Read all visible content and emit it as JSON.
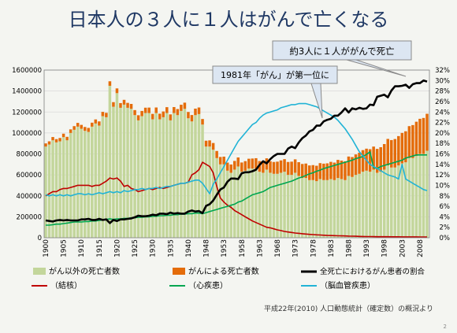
{
  "slide_title": "日本人の３人に１人はがんで亡くなる",
  "source_note": "平成22年(2010) 人口動態統計（確定数）の概況より",
  "page_number": "2",
  "chart_data": {
    "type": "bar",
    "left_axis": {
      "min": 0,
      "max": 1600000,
      "ticks": [
        "0",
        "200000",
        "400000",
        "600000",
        "800000",
        "1000000",
        "1200000",
        "1400000",
        "1600000"
      ]
    },
    "right_axis": {
      "min": 0,
      "max": 32,
      "ticks": [
        "0%",
        "2%",
        "4%",
        "6%",
        "8%",
        "10%",
        "12%",
        "14%",
        "16%",
        "18%",
        "20%",
        "22%",
        "24%",
        "26%",
        "28%",
        "30%",
        "32%"
      ]
    },
    "x_tick_labels": [
      "1900",
      "1905",
      "1910",
      "1915",
      "1920",
      "1925",
      "1930",
      "1935",
      "1940",
      "1948",
      "1953",
      "1958",
      "1963",
      "1968",
      "1973",
      "1978",
      "1983",
      "1988",
      "1993",
      "1998",
      "2003",
      "2008"
    ],
    "colors": {
      "non_cancer": "#c3d69b",
      "cancer": "#e46c0a",
      "share": "#000000",
      "tb": "#c00000",
      "heart": "#00a651",
      "cerebro": "#21b3d6",
      "grid": "#d9d9d9",
      "title": "#1f3864"
    },
    "callouts": [
      "約3人に１人ががんで死亡",
      "1981年「がん」が第一位に"
    ],
    "legend": [
      {
        "label": "がん以外の死亡者数",
        "kind": "box",
        "color": "#c3d69b"
      },
      {
        "label": "がんによる死亡者数",
        "kind": "box",
        "color": "#e46c0a"
      },
      {
        "label": "全死亡におけるがん患者の割合",
        "kind": "line",
        "color": "#000000"
      },
      {
        "label": "（結核）",
        "kind": "line",
        "color": "#c00000"
      },
      {
        "label": "（心疾患）",
        "kind": "line",
        "color": "#00a651"
      },
      {
        "label": "（脳血管疾患）",
        "kind": "line",
        "color": "#21b3d6"
      }
    ],
    "years": [
      1900,
      1901,
      1902,
      1903,
      1904,
      1905,
      1906,
      1907,
      1908,
      1909,
      1910,
      1911,
      1912,
      1913,
      1914,
      1915,
      1916,
      1917,
      1918,
      1919,
      1920,
      1921,
      1922,
      1923,
      1924,
      1925,
      1926,
      1927,
      1928,
      1929,
      1930,
      1931,
      1932,
      1933,
      1934,
      1935,
      1936,
      1937,
      1938,
      1939,
      1940,
      1941,
      1942,
      1943,
      1947,
      1948,
      1949,
      1950,
      1951,
      1952,
      1953,
      1954,
      1955,
      1956,
      1957,
      1958,
      1959,
      1960,
      1961,
      1962,
      1963,
      1964,
      1965,
      1966,
      1967,
      1968,
      1969,
      1970,
      1971,
      1972,
      1973,
      1974,
      1975,
      1976,
      1977,
      1978,
      1979,
      1980,
      1981,
      1982,
      1983,
      1984,
      1985,
      1986,
      1987,
      1988,
      1989,
      1990,
      1991,
      1992,
      1993,
      1994,
      1995,
      1996,
      1997,
      1998,
      1999,
      2000,
      2001,
      2002,
      2003,
      2004,
      2005,
      2006,
      2007,
      2008,
      2009,
      2010
    ],
    "non_cancer_deaths": [
      870000,
      890000,
      930000,
      910000,
      920000,
      960000,
      930000,
      1000000,
      1030000,
      1060000,
      1040000,
      1020000,
      1010000,
      1060000,
      1090000,
      1070000,
      1160000,
      1150000,
      1450000,
      1250000,
      1380000,
      1240000,
      1270000,
      1240000,
      1230000,
      1170000,
      1120000,
      1160000,
      1190000,
      1190000,
      1130000,
      1190000,
      1130000,
      1150000,
      1190000,
      1120000,
      1190000,
      1170000,
      1210000,
      1230000,
      1140000,
      1110000,
      1170000,
      1180000,
      1080000,
      870000,
      870000,
      840000,
      760000,
      700000,
      700000,
      640000,
      620000,
      650000,
      680000,
      630000,
      640000,
      660000,
      660000,
      660000,
      630000,
      620000,
      650000,
      620000,
      610000,
      610000,
      620000,
      630000,
      600000,
      600000,
      620000,
      590000,
      570000,
      570000,
      550000,
      550000,
      540000,
      560000,
      550000,
      550000,
      560000,
      550000,
      570000,
      560000,
      550000,
      590000,
      580000,
      600000,
      610000,
      630000,
      640000,
      630000,
      650000,
      620000,
      630000,
      650000,
      690000,
      670000,
      670000,
      690000,
      710000,
      720000,
      760000,
      760000,
      780000,
      800000,
      800000,
      830000
    ],
    "cancer_deaths": [
      30000,
      30000,
      31000,
      31000,
      32000,
      33000,
      33000,
      34000,
      35000,
      36000,
      37000,
      37000,
      38000,
      38000,
      39000,
      40000,
      41000,
      42000,
      43000,
      44000,
      45000,
      45000,
      46000,
      47000,
      47000,
      48000,
      49000,
      50000,
      51000,
      52000,
      52000,
      53000,
      54000,
      55000,
      56000,
      57000,
      57000,
      58000,
      59000,
      59000,
      60000,
      61000,
      62000,
      63000,
      53000,
      56000,
      59000,
      64000,
      68000,
      71000,
      74000,
      77000,
      79000,
      83000,
      86000,
      88000,
      91000,
      94000,
      96000,
      99000,
      102000,
      106000,
      108000,
      110000,
      113000,
      116000,
      118000,
      120000,
      123000,
      126000,
      128000,
      131000,
      134000,
      138000,
      140000,
      143000,
      147000,
      152000,
      157000,
      160000,
      164000,
      167000,
      173000,
      176000,
      180000,
      185000,
      190000,
      195000,
      201000,
      206000,
      210000,
      215000,
      220000,
      228000,
      234000,
      244000,
      253000,
      262000,
      272000,
      280000,
      290000,
      296000,
      305000,
      315000,
      327000,
      335000,
      343000,
      353000
    ],
    "cancer_share_pct": [
      3.3,
      3.2,
      3.1,
      3.3,
      3.4,
      3.3,
      3.4,
      3.3,
      3.3,
      3.3,
      3.5,
      3.5,
      3.6,
      3.4,
      3.4,
      3.6,
      3.4,
      3.5,
      2.8,
      3.4,
      3.2,
      3.5,
      3.5,
      3.6,
      3.7,
      3.9,
      4.2,
      4.1,
      4.1,
      4.2,
      4.4,
      4.3,
      4.6,
      4.6,
      4.5,
      4.8,
      4.6,
      4.7,
      4.6,
      4.6,
      5.0,
      5.2,
      5.0,
      5.1,
      4.7,
      6.1,
      6.4,
      7.1,
      8.2,
      9.2,
      9.6,
      10.7,
      11.3,
      11.3,
      11.2,
      12.3,
      12.5,
      12.5,
      12.7,
      13.0,
      13.9,
      14.6,
      14.2,
      15.0,
      15.6,
      16.0,
      16.0,
      16.0,
      17.0,
      17.4,
      17.1,
      18.2,
      19.0,
      19.5,
      20.3,
      20.6,
      21.4,
      21.4,
      22.2,
      22.5,
      22.7,
      23.3,
      23.3,
      23.9,
      24.7,
      23.9,
      24.7,
      24.5,
      24.8,
      24.6,
      24.7,
      25.4,
      25.3,
      26.9,
      27.1,
      27.3,
      26.8,
      28.1,
      28.9,
      28.9,
      29.0,
      29.2,
      28.6,
      29.3,
      29.5,
      29.5,
      30.0,
      29.8
    ],
    "tb_deaths": [
      400000,
      420000,
      440000,
      440000,
      460000,
      470000,
      470000,
      480000,
      490000,
      500000,
      500000,
      500000,
      500000,
      490000,
      500000,
      500000,
      520000,
      540000,
      570000,
      560000,
      570000,
      540000,
      490000,
      500000,
      470000,
      460000,
      440000,
      450000,
      460000,
      470000,
      460000,
      470000,
      480000,
      470000,
      480000,
      490000,
      500000,
      510000,
      520000,
      520000,
      530000,
      600000,
      620000,
      650000,
      720000,
      700000,
      680000,
      620000,
      490000,
      380000,
      340000,
      310000,
      290000,
      260000,
      240000,
      220000,
      200000,
      180000,
      160000,
      145000,
      130000,
      115000,
      100000,
      95000,
      85000,
      75000,
      68000,
      60000,
      55000,
      50000,
      45000,
      42000,
      38000,
      35000,
      32000,
      30000,
      28000,
      26000,
      24000,
      22000,
      21000,
      20000,
      19000,
      18000,
      17000,
      16000,
      15000,
      14000,
      13000,
      12000,
      11000,
      11000,
      10500,
      10000,
      10000,
      9500,
      9500,
      9000,
      9000,
      8800,
      8600,
      8500,
      8300,
      8200,
      8000,
      7800,
      7600,
      7500
    ],
    "heart_deaths": [
      120000,
      120000,
      125000,
      130000,
      130000,
      135000,
      140000,
      145000,
      150000,
      150000,
      150000,
      155000,
      155000,
      160000,
      160000,
      165000,
      170000,
      175000,
      180000,
      175000,
      180000,
      180000,
      185000,
      185000,
      190000,
      190000,
      195000,
      195000,
      200000,
      200000,
      205000,
      205000,
      210000,
      210000,
      215000,
      215000,
      220000,
      220000,
      225000,
      225000,
      230000,
      230000,
      235000,
      235000,
      230000,
      240000,
      250000,
      260000,
      270000,
      280000,
      290000,
      300000,
      310000,
      320000,
      340000,
      350000,
      370000,
      390000,
      410000,
      420000,
      430000,
      440000,
      460000,
      480000,
      490000,
      500000,
      510000,
      520000,
      530000,
      540000,
      555000,
      570000,
      580000,
      595000,
      610000,
      620000,
      635000,
      645000,
      660000,
      670000,
      680000,
      690000,
      700000,
      710000,
      720000,
      730000,
      740000,
      755000,
      765000,
      775000,
      795000,
      820000,
      670000,
      660000,
      680000,
      690000,
      700000,
      710000,
      720000,
      730000,
      740000,
      760000,
      770000,
      780000,
      790000,
      790000,
      790000,
      790000
    ],
    "cerebro_deaths": [
      410000,
      400000,
      410000,
      400000,
      410000,
      400000,
      410000,
      400000,
      410000,
      420000,
      420000,
      410000,
      420000,
      410000,
      420000,
      430000,
      420000,
      430000,
      440000,
      430000,
      440000,
      430000,
      450000,
      440000,
      450000,
      460000,
      460000,
      470000,
      460000,
      470000,
      470000,
      480000,
      470000,
      480000,
      490000,
      490000,
      500000,
      510000,
      520000,
      520000,
      530000,
      540000,
      550000,
      550000,
      520000,
      470000,
      420000,
      510000,
      560000,
      620000,
      680000,
      740000,
      800000,
      860000,
      920000,
      960000,
      1000000,
      1040000,
      1080000,
      1100000,
      1140000,
      1170000,
      1190000,
      1200000,
      1210000,
      1220000,
      1240000,
      1250000,
      1260000,
      1270000,
      1270000,
      1280000,
      1280000,
      1280000,
      1270000,
      1260000,
      1250000,
      1230000,
      1210000,
      1190000,
      1170000,
      1150000,
      1120000,
      1080000,
      1040000,
      990000,
      940000,
      880000,
      820000,
      780000,
      740000,
      700000,
      680000,
      660000,
      640000,
      620000,
      600000,
      590000,
      580000,
      560000,
      700000,
      560000,
      540000,
      520000,
      500000,
      480000,
      460000,
      450000
    ]
  }
}
